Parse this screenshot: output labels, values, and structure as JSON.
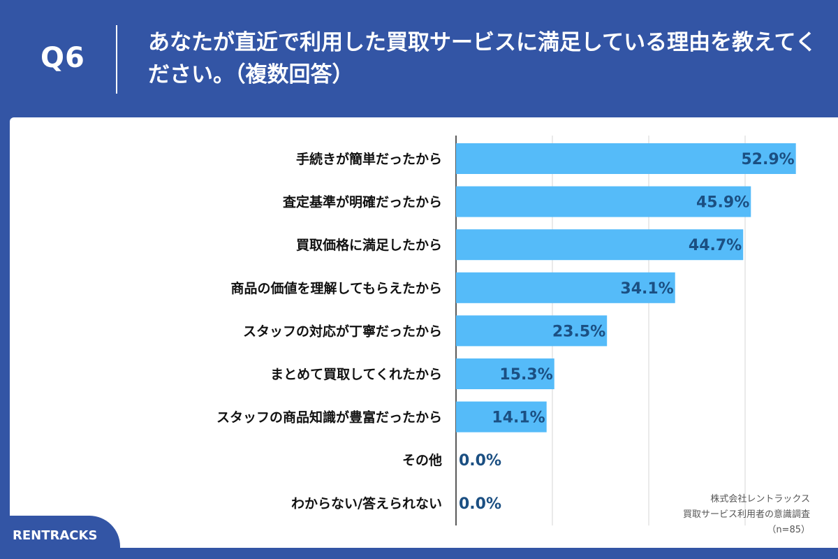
{
  "header": {
    "question_id": "Q6",
    "title": "あなたが直近で利用した買取サービスに満足している理由を教えてください。（複数回答）"
  },
  "chart_data": {
    "type": "bar",
    "orientation": "horizontal",
    "categories": [
      "手続きが簡単だったから",
      "査定基準が明確だったから",
      "買取価格に満足したから",
      "商品の価値を理解してもらえたから",
      "スタッフの対応が丁寧だったから",
      "まとめて買取してくれたから",
      "スタッフの商品知識が豊富だったから",
      "その他",
      "わからない/答えられない"
    ],
    "values": [
      52.9,
      45.9,
      44.7,
      34.1,
      23.5,
      15.3,
      14.1,
      0.0,
      0.0
    ],
    "value_labels": [
      "52.9%",
      "45.9%",
      "44.7%",
      "34.1%",
      "23.5%",
      "15.3%",
      "14.1%",
      "0.0%",
      "0.0%"
    ],
    "xlim": [
      0,
      60
    ],
    "grid": true,
    "bar_color": "#55BBF9"
  },
  "source": {
    "line1": "株式会社レントラックス",
    "line2": "買取サービス利用者の意識調査",
    "line3": "（n=85）"
  },
  "brand": {
    "logo_text": "RENTRACKS",
    "primary_color": "#3355A5"
  }
}
